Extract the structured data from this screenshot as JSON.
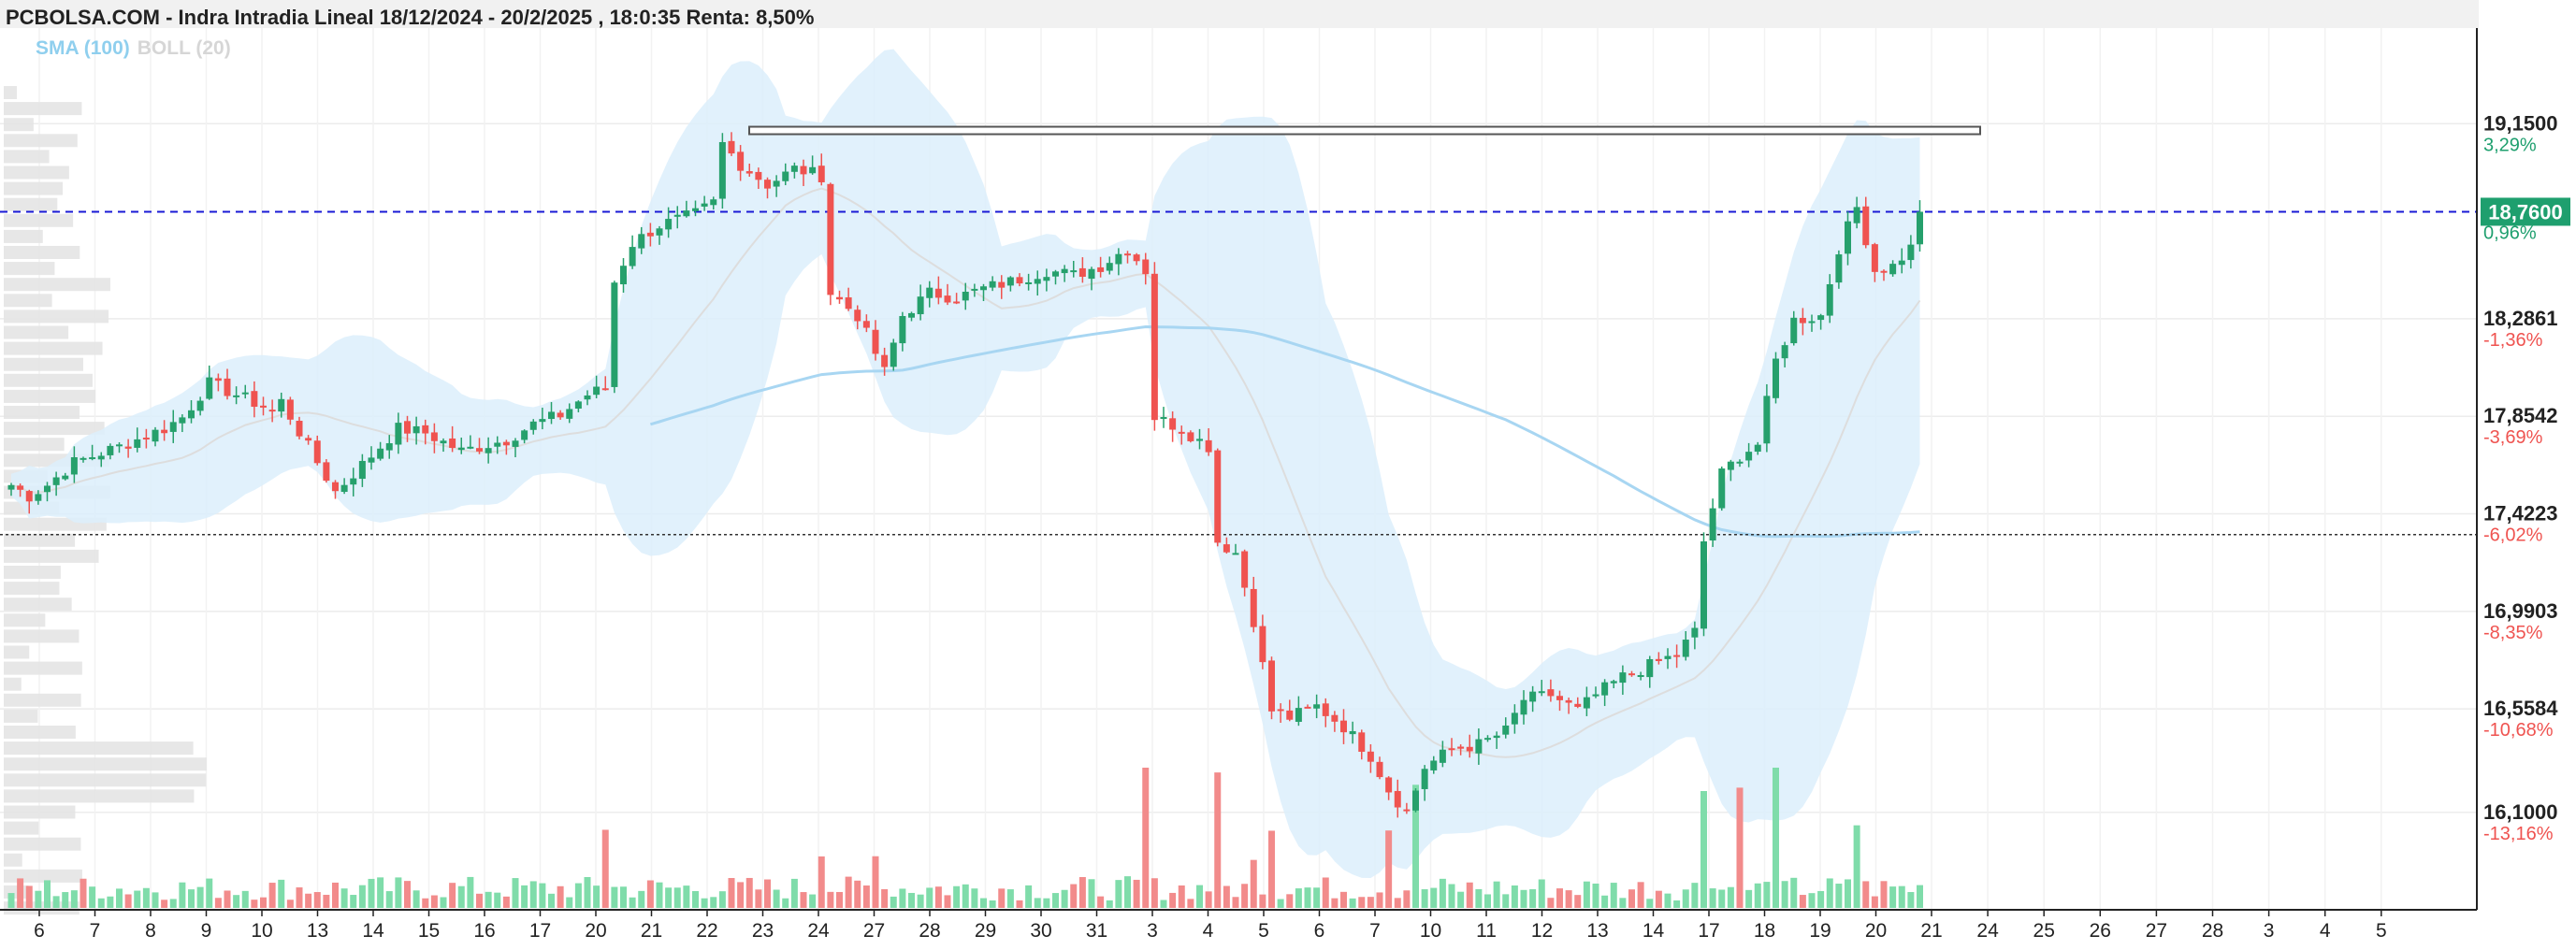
{
  "title": "PCBOLSA.COM - Indra Intradia Lineal 18/12/2024 - 20/2/2025 , 18:0:35 Renta: 8,50%",
  "indicators": {
    "sma": "SMA (100)",
    "boll": "BOLL (20)"
  },
  "colors": {
    "up": "#26a06c",
    "down": "#ef5350",
    "vol_up": "#7fdcaa",
    "vol_down": "#f28b8b",
    "band": "#dceefb",
    "sma": "#a8d6f2",
    "boll_mid": "#dddddd",
    "price_line": "#1a1ad6",
    "price_tag": "#1e9f6e",
    "pct_up": "#1e9f6e",
    "pct_down": "#ef5350"
  },
  "chart_data": {
    "type": "candlestick",
    "ylim": [
      15.95,
      19.35
    ],
    "y_ticks": [
      {
        "value": 19.15,
        "label": "19,1500",
        "pct": "3,29%"
      },
      {
        "value": 18.286,
        "label": "18,2861",
        "pct": "-1,36%"
      },
      {
        "value": 17.854,
        "label": "17,8542",
        "pct": "-3,69%"
      },
      {
        "value": 17.422,
        "label": "17,4223",
        "pct": "-6,02%"
      },
      {
        "value": 16.99,
        "label": "16,9903",
        "pct": "-8,35%"
      },
      {
        "value": 16.558,
        "label": "16,5584",
        "pct": "-10,68%"
      },
      {
        "value": 16.1,
        "label": "16,1000",
        "pct": "-13,16%"
      }
    ],
    "last_price": {
      "value": 18.76,
      "label": "18,7600",
      "pct": "0,96%"
    },
    "reference_line": 17.33,
    "resistance_line": 19.12,
    "x_labels": [
      "6",
      "7",
      "8",
      "9",
      "10",
      "13",
      "14",
      "15",
      "16",
      "17",
      "20",
      "21",
      "22",
      "23",
      "24",
      "27",
      "28",
      "29",
      "30",
      "31",
      "3",
      "4",
      "5",
      "6",
      "7",
      "10",
      "11",
      "12",
      "13",
      "14",
      "17",
      "18",
      "19",
      "20",
      "21",
      "24",
      "25",
      "26",
      "27",
      "28",
      "3",
      "4",
      "5"
    ],
    "anchors": [
      [
        0,
        17.55
      ],
      [
        2,
        17.5
      ],
      [
        4,
        17.55
      ],
      [
        7,
        17.65
      ],
      [
        12,
        17.72
      ],
      [
        17,
        17.8
      ],
      [
        19,
        17.85
      ],
      [
        22,
        18.0
      ],
      [
        25,
        17.95
      ],
      [
        29,
        17.88
      ],
      [
        30,
        17.92
      ],
      [
        34,
        17.65
      ],
      [
        36,
        17.52
      ],
      [
        38,
        17.6
      ],
      [
        43,
        17.8
      ],
      [
        46,
        17.78
      ],
      [
        50,
        17.7
      ],
      [
        55,
        17.75
      ],
      [
        58,
        17.82
      ],
      [
        61,
        17.86
      ],
      [
        64,
        17.95
      ],
      [
        66,
        17.98
      ],
      [
        67,
        18.45
      ],
      [
        69,
        18.62
      ],
      [
        72,
        18.7
      ],
      [
        76,
        18.75
      ],
      [
        78,
        18.8
      ],
      [
        79,
        19.06
      ],
      [
        81,
        18.97
      ],
      [
        84,
        18.88
      ],
      [
        87,
        18.95
      ],
      [
        90,
        18.92
      ],
      [
        91,
        18.4
      ],
      [
        94,
        18.3
      ],
      [
        97,
        18.05
      ],
      [
        99,
        18.3
      ],
      [
        102,
        18.4
      ],
      [
        105,
        18.38
      ],
      [
        108,
        18.42
      ],
      [
        111,
        18.45
      ],
      [
        115,
        18.5
      ],
      [
        118,
        18.48
      ],
      [
        121,
        18.52
      ],
      [
        124,
        18.6
      ],
      [
        126,
        18.5
      ],
      [
        127,
        17.85
      ],
      [
        130,
        17.8
      ],
      [
        133,
        17.72
      ],
      [
        134,
        17.3
      ],
      [
        136,
        17.25
      ],
      [
        138,
        16.95
      ],
      [
        140,
        16.55
      ],
      [
        142,
        16.52
      ],
      [
        145,
        16.57
      ],
      [
        148,
        16.48
      ],
      [
        151,
        16.35
      ],
      [
        153,
        16.2
      ],
      [
        155,
        16.1
      ],
      [
        157,
        16.3
      ],
      [
        160,
        16.38
      ],
      [
        163,
        16.4
      ],
      [
        166,
        16.46
      ],
      [
        168,
        16.6
      ],
      [
        171,
        16.62
      ],
      [
        174,
        16.55
      ],
      [
        176,
        16.62
      ],
      [
        179,
        16.7
      ],
      [
        182,
        16.75
      ],
      [
        185,
        16.8
      ],
      [
        187,
        16.9
      ],
      [
        188,
        17.3
      ],
      [
        190,
        17.6
      ],
      [
        192,
        17.68
      ],
      [
        194,
        17.73
      ],
      [
        196,
        18.1
      ],
      [
        198,
        18.28
      ],
      [
        201,
        18.3
      ],
      [
        203,
        18.6
      ],
      [
        205,
        18.78
      ],
      [
        207,
        18.5
      ],
      [
        209,
        18.52
      ],
      [
        211,
        18.6
      ],
      [
        212,
        18.76
      ]
    ],
    "sma_start_index": 71,
    "n_candles": 213
  }
}
